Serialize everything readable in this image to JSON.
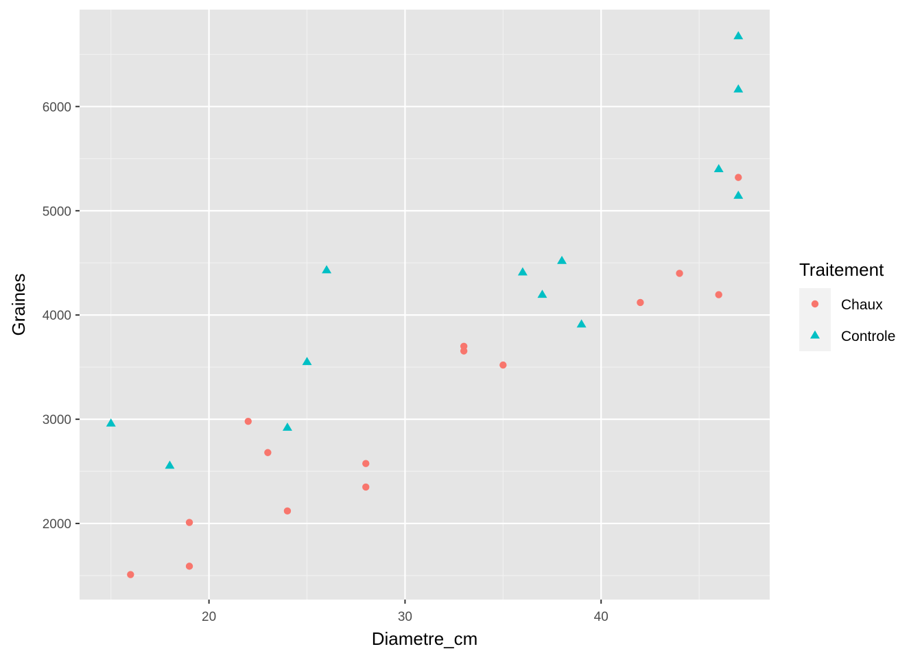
{
  "chart_data": {
    "type": "scatter",
    "xlabel": "Diametre_cm",
    "ylabel": "Graines",
    "xlim": [
      13.4,
      48.6
    ],
    "ylim": [
      1270,
      6930
    ],
    "x_ticks": [
      20,
      30,
      40
    ],
    "y_ticks": [
      2000,
      3000,
      4000,
      5000,
      6000
    ],
    "x_tick_labels": [
      "20",
      "30",
      "40"
    ],
    "y_tick_labels": [
      "2000",
      "3000",
      "4000",
      "5000",
      "6000"
    ],
    "grid": true,
    "panel_background": "#e5e5e5",
    "legend": {
      "title": "Traitement",
      "position": "right"
    },
    "series": [
      {
        "name": "Chaux",
        "shape": "circle",
        "color": "#F8766D",
        "points": [
          {
            "x": 16,
            "y": 1510
          },
          {
            "x": 19,
            "y": 1590
          },
          {
            "x": 19,
            "y": 2010
          },
          {
            "x": 22,
            "y": 2980
          },
          {
            "x": 23,
            "y": 2680
          },
          {
            "x": 24,
            "y": 2120
          },
          {
            "x": 28,
            "y": 2575
          },
          {
            "x": 28,
            "y": 2350
          },
          {
            "x": 33,
            "y": 3700
          },
          {
            "x": 33,
            "y": 3655
          },
          {
            "x": 35,
            "y": 3520
          },
          {
            "x": 42,
            "y": 4120
          },
          {
            "x": 44,
            "y": 4400
          },
          {
            "x": 46,
            "y": 4195
          },
          {
            "x": 47,
            "y": 5320
          }
        ]
      },
      {
        "name": "Controle",
        "shape": "triangle",
        "color": "#00BFC4",
        "points": [
          {
            "x": 15,
            "y": 2960
          },
          {
            "x": 18,
            "y": 2555
          },
          {
            "x": 24,
            "y": 2920
          },
          {
            "x": 25,
            "y": 3550
          },
          {
            "x": 26,
            "y": 4430
          },
          {
            "x": 36,
            "y": 4410
          },
          {
            "x": 37,
            "y": 4195
          },
          {
            "x": 38,
            "y": 4520
          },
          {
            "x": 39,
            "y": 3910
          },
          {
            "x": 46,
            "y": 5400
          },
          {
            "x": 47,
            "y": 5145
          },
          {
            "x": 47,
            "y": 6165
          },
          {
            "x": 47,
            "y": 6675
          }
        ]
      }
    ]
  }
}
